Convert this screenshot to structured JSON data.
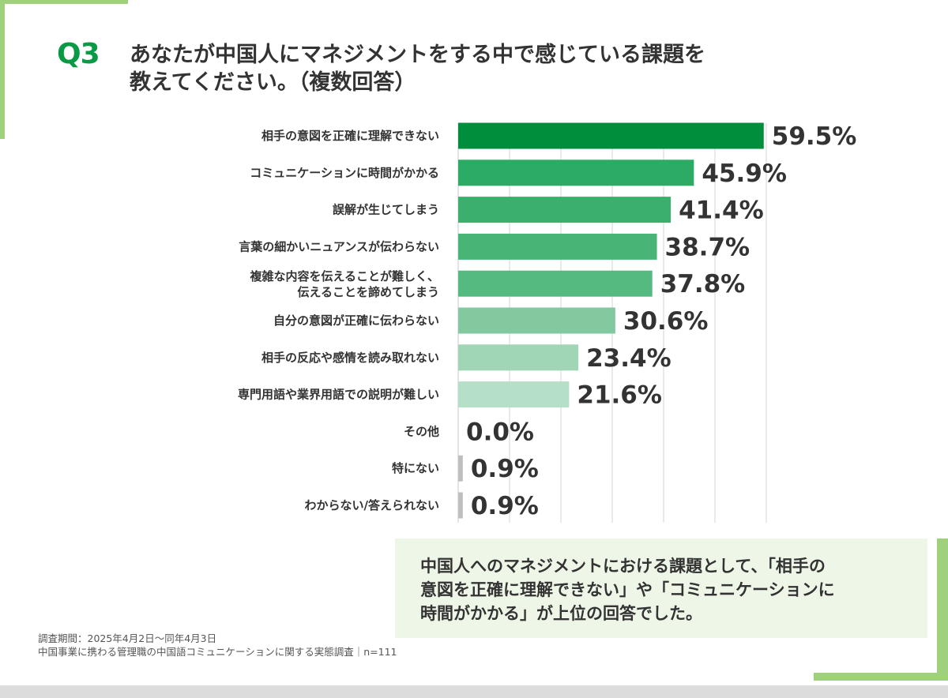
{
  "colors": {
    "accent_green": "#0a9a45",
    "deco_green": "#9fd17c",
    "grid": "#d5d5d5",
    "axis": "#c8c8c8",
    "small_bar": "#bfbfbf",
    "bar_palette": [
      "#008e3d",
      "#2bab63",
      "#3bb06d",
      "#48b476",
      "#55ba7f",
      "#82c9a0",
      "#a0d6b6",
      "#b6dfc7"
    ]
  },
  "question": {
    "number": "Q3",
    "title_line1": "あなたが中国人にマネジメントをする中で感じている課題を",
    "title_line2": "教えてください。（複数回答）"
  },
  "chart_data": {
    "type": "bar",
    "orientation": "horizontal",
    "categories": [
      [
        "相手の意図を正確に理解できない"
      ],
      [
        "コミュニケーションに時間がかかる"
      ],
      [
        "誤解が生じてしまう"
      ],
      [
        "言葉の細かいニュアンスが伝わらない"
      ],
      [
        "複雑な内容を伝えることが難しく、",
        "伝えることを諦めてしまう"
      ],
      [
        "自分の意図が正確に伝わらない"
      ],
      [
        "相手の反応や感情を読み取れない"
      ],
      [
        "専門用語や業界用語での説明が難しい"
      ],
      [
        "その他"
      ],
      [
        "特にない"
      ],
      [
        "わからない/答えられない"
      ]
    ],
    "values": [
      59.5,
      45.9,
      41.4,
      38.7,
      37.8,
      30.6,
      23.4,
      21.6,
      0.0,
      0.9,
      0.9
    ],
    "value_labels": [
      "59.5%",
      "45.9%",
      "41.4%",
      "38.7%",
      "37.8%",
      "30.6%",
      "23.4%",
      "21.6%",
      "0.0%",
      "0.9%",
      "0.9%"
    ],
    "xlim": [
      0,
      60
    ],
    "unit": "%",
    "grid": true,
    "legend": "none"
  },
  "summary": {
    "line1": "中国人へのマネジメントにおける課題として、「相手の",
    "line2": "意図を正確に理解できない」や「コミュニケーションに",
    "line3": "時間がかかる」が上位の回答でした。"
  },
  "footnote": {
    "period": "調査期間：2025年4月2日〜同年4月3日",
    "source": "中国事業に携わる管理職の中国語コミュニケーションに関する実態調査｜n=111"
  }
}
